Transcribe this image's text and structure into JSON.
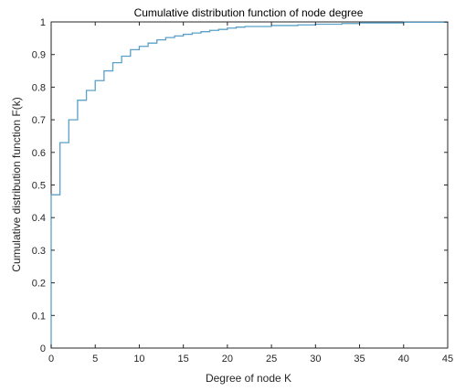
{
  "chart_data": {
    "type": "line",
    "step": true,
    "title": "Cumulative distribution function of node degree",
    "xlabel": "Degree of node K",
    "ylabel": "Cumulative distribution function F(k)",
    "xlim": [
      0,
      45
    ],
    "ylim": [
      0,
      1
    ],
    "xticks": [
      0,
      5,
      10,
      15,
      20,
      25,
      30,
      35,
      40,
      45
    ],
    "yticks": [
      0,
      0.1,
      0.2,
      0.3,
      0.4,
      0.5,
      0.6,
      0.7,
      0.8,
      0.9,
      1
    ],
    "ytick_labels": [
      "0",
      "0.1",
      "0.2",
      "0.3",
      "0.4",
      "0.5",
      "0.6",
      "0.7",
      "0.8",
      "0.9",
      "1"
    ],
    "grid": false,
    "line_color": "#5aa0c8",
    "series": [
      {
        "x": [
          0,
          1,
          2,
          3,
          4,
          5,
          6,
          7,
          8,
          9,
          10,
          11,
          12,
          13,
          14,
          15,
          16,
          17,
          18,
          19,
          20,
          21,
          22,
          25,
          28,
          30,
          33,
          35,
          40,
          45
        ],
        "y": [
          0.47,
          0.63,
          0.7,
          0.76,
          0.79,
          0.82,
          0.85,
          0.875,
          0.895,
          0.915,
          0.925,
          0.935,
          0.945,
          0.952,
          0.957,
          0.962,
          0.966,
          0.97,
          0.974,
          0.977,
          0.981,
          0.984,
          0.986,
          0.989,
          0.991,
          0.993,
          0.995,
          0.997,
          0.999,
          1.0
        ]
      }
    ]
  }
}
